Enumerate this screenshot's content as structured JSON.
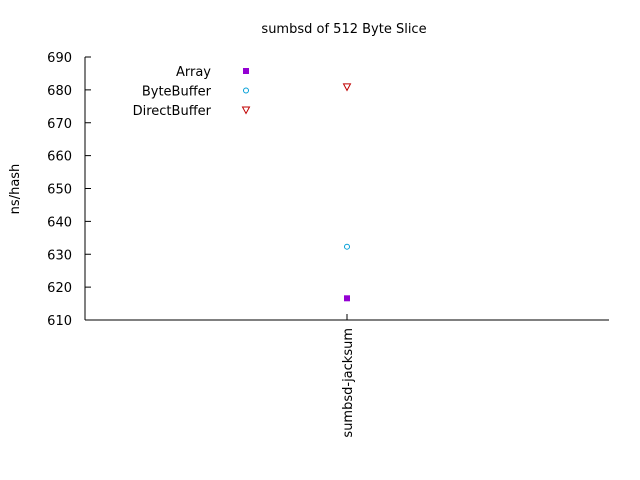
{
  "chart_data": {
    "type": "scatter",
    "title": "sumbsd of 512 Byte Slice",
    "xlabel": "",
    "ylabel": "ns/hash",
    "categories": [
      "sumbsd-jacksum"
    ],
    "ylim": [
      610,
      690
    ],
    "yticks": [
      610,
      620,
      630,
      640,
      650,
      660,
      670,
      680,
      690
    ],
    "grid": false,
    "legend_position": "top-left",
    "series": [
      {
        "name": "Array",
        "marker": "filled-square",
        "color": "#9400d3",
        "values": [
          616.6
        ]
      },
      {
        "name": "ByteBuffer",
        "marker": "open-circle",
        "color": "#009ed7",
        "values": [
          632.3
        ]
      },
      {
        "name": "DirectBuffer",
        "marker": "open-triangle-down",
        "color": "#c00000",
        "values": [
          680.9
        ]
      }
    ]
  }
}
